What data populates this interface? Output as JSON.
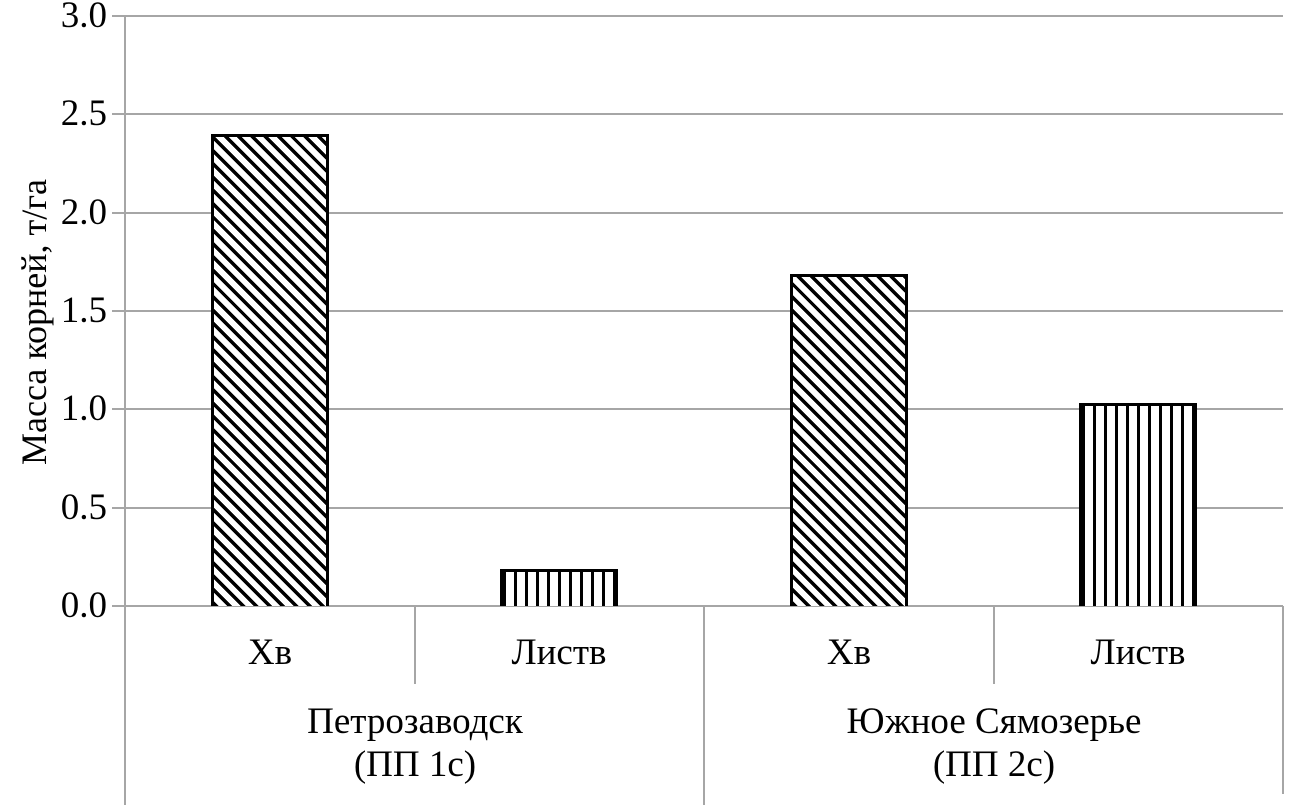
{
  "chart_data": {
    "type": "bar",
    "title": "",
    "ylabel": "Масса корней, т/га",
    "xlabel": "",
    "ylim": [
      0.0,
      3.0
    ],
    "ytick_step": 0.5,
    "ytick_labels": [
      "0.0",
      "0.5",
      "1.0",
      "1.5",
      "2.0",
      "2.5",
      "3.0"
    ],
    "grid": "horizontal-gridlines-on",
    "legend_position": "none",
    "groups": [
      {
        "label": "Петрозаводск",
        "sublabel": "(ПП 1с)",
        "bars": [
          {
            "category": "Хв",
            "value": 2.4,
            "pattern": "diagonal-hatch"
          },
          {
            "category": "Листв",
            "value": 0.19,
            "pattern": "vertical-stripes"
          }
        ]
      },
      {
        "label": "Южное Сямозерье",
        "sublabel": "(ПП 2с)",
        "bars": [
          {
            "category": "Хв",
            "value": 1.69,
            "pattern": "diagonal-hatch"
          },
          {
            "category": "Листв",
            "value": 1.03,
            "pattern": "vertical-stripes"
          }
        ]
      }
    ],
    "colors": {
      "bar_fill": "#ffffff",
      "bar_stroke": "#000000",
      "gridline": "#a6a6a6",
      "axis": "#a6a6a6",
      "text": "#000000",
      "background": "#ffffff"
    }
  }
}
